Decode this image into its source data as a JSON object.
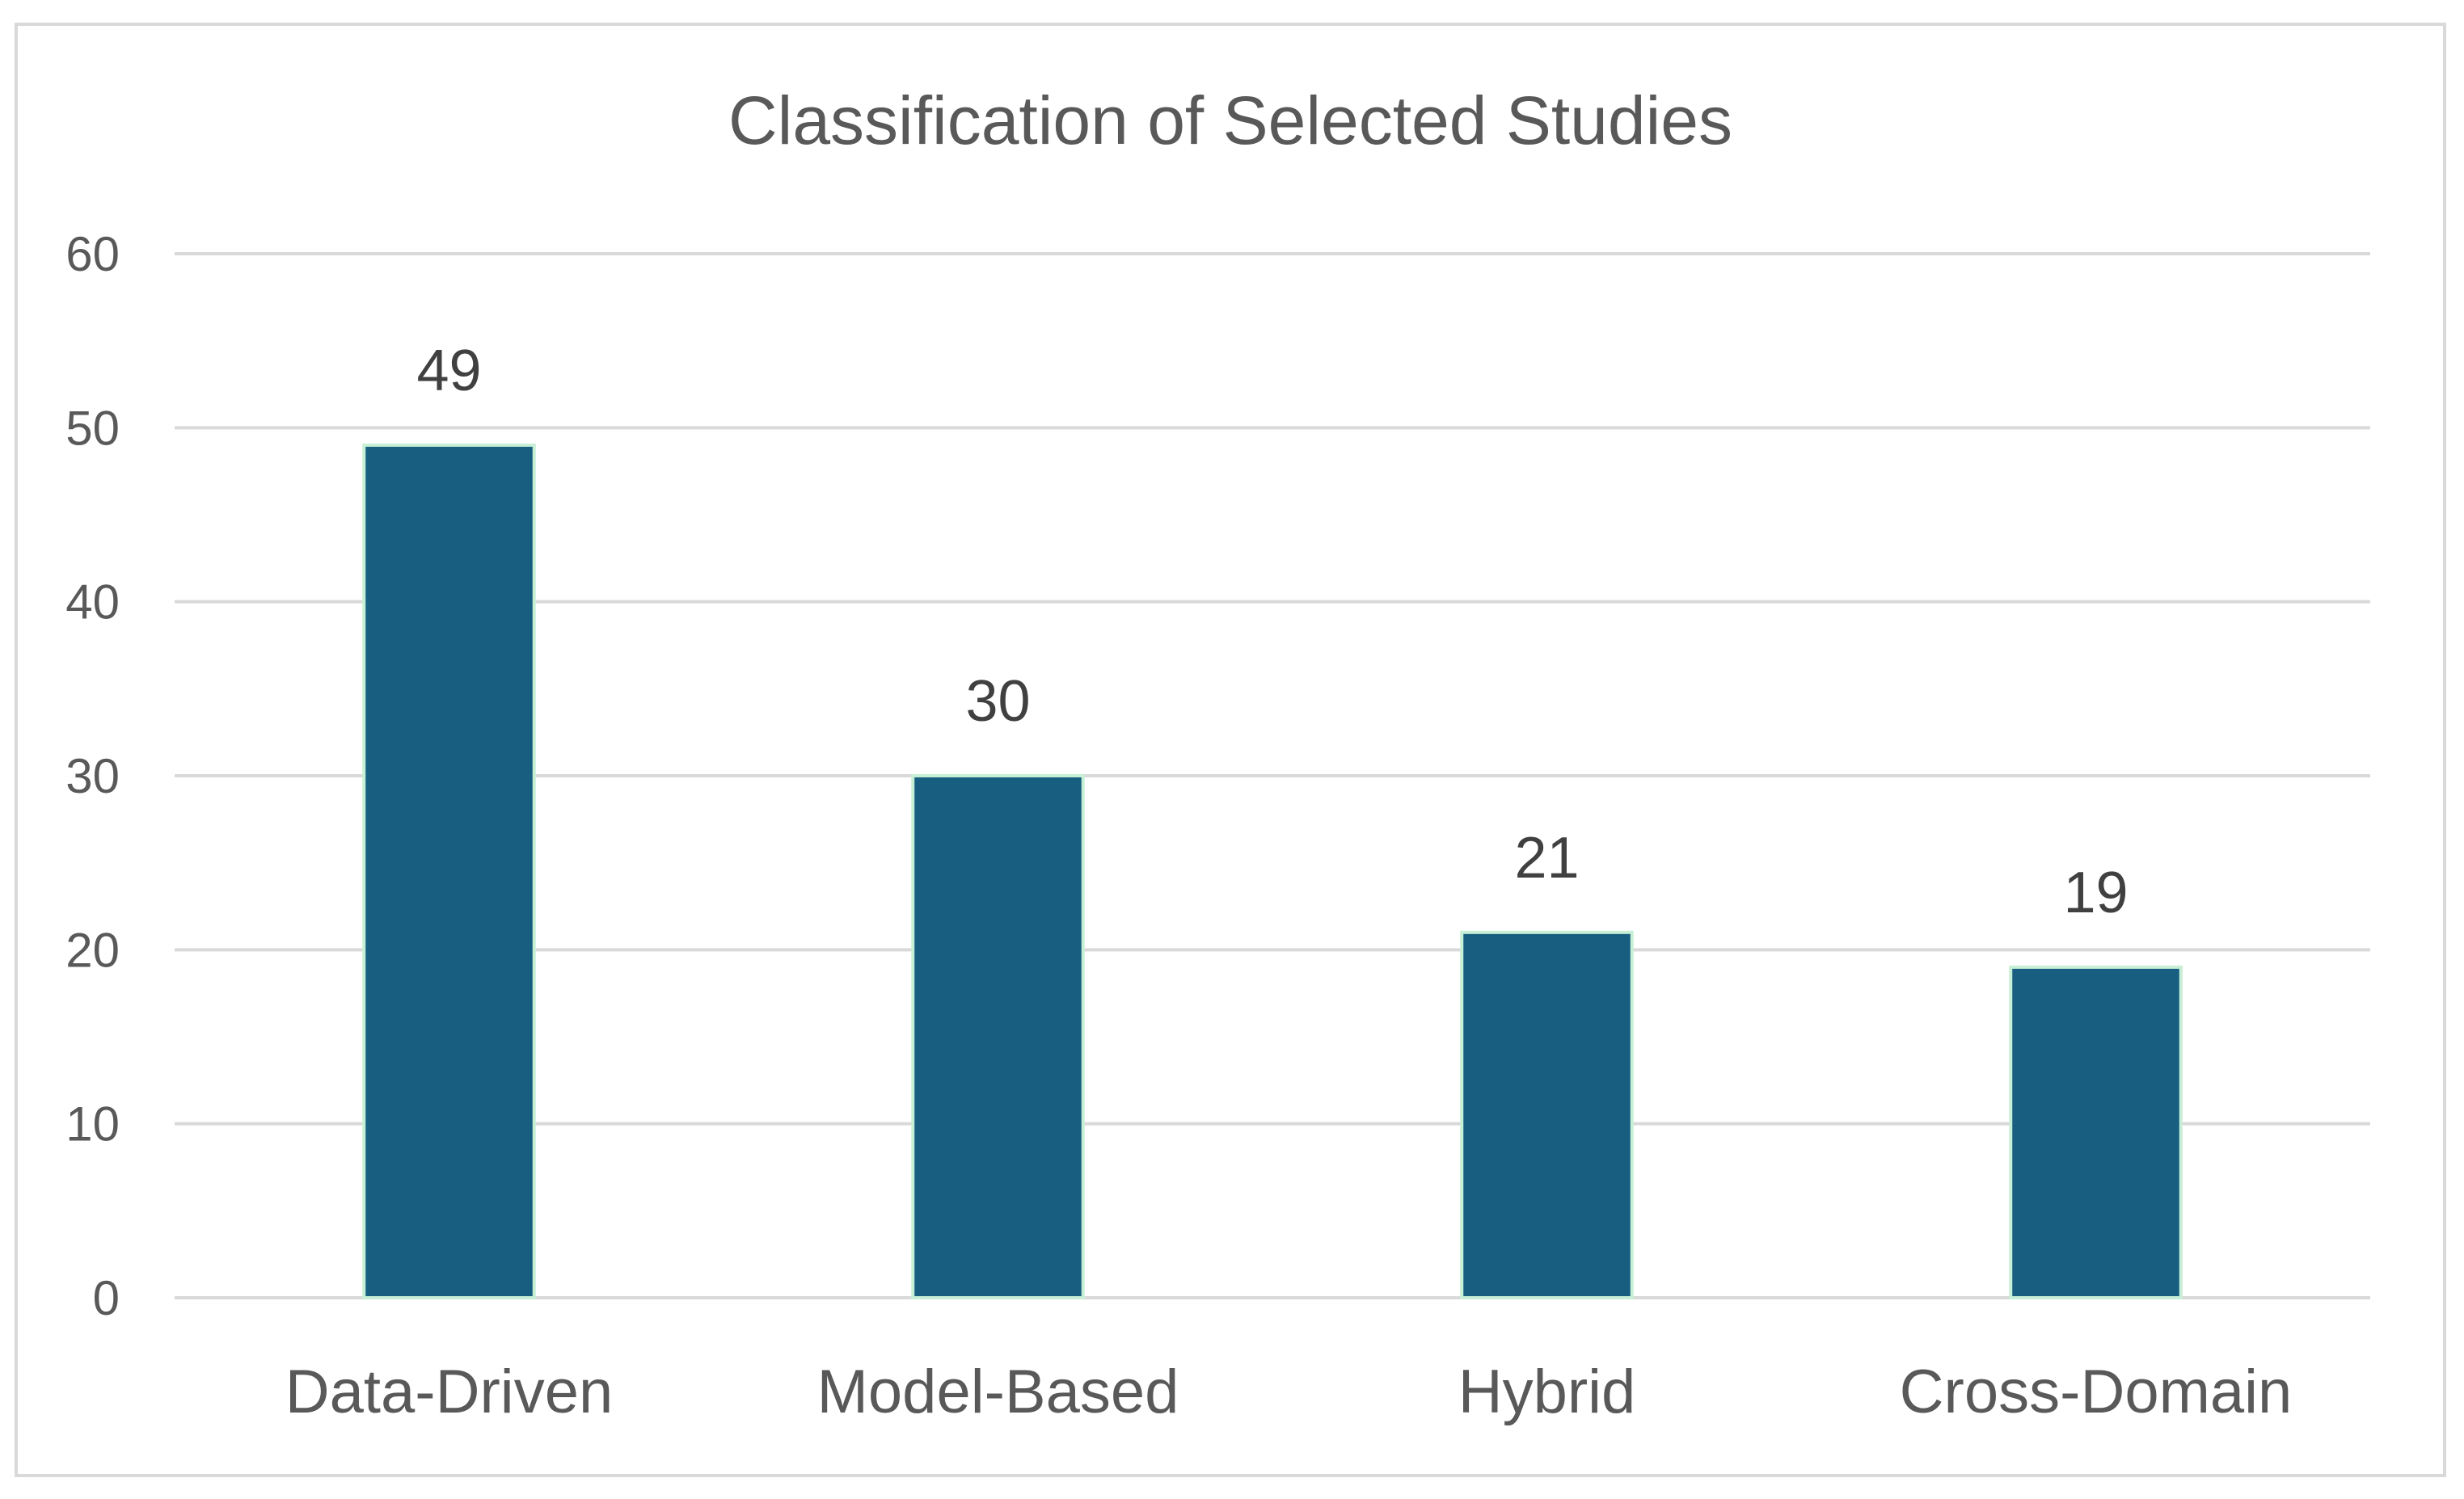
{
  "chart_data": {
    "type": "bar",
    "title": "Classification of Selected Studies",
    "xlabel": "",
    "ylabel": "",
    "categories": [
      "Data-Driven",
      "Model-Based",
      "Hybrid",
      "Cross-Domain"
    ],
    "values": [
      49,
      30,
      21,
      19
    ],
    "data_labels": [
      "49",
      "30",
      "21",
      "19"
    ],
    "ylim": [
      0,
      60
    ],
    "yticks": [
      0,
      10,
      20,
      30,
      40,
      50,
      60
    ],
    "ytick_labels": [
      "0",
      "10",
      "20",
      "30",
      "40",
      "50",
      "60"
    ],
    "grid": true,
    "legend": "none",
    "colors": {
      "bar_fill": "#175e80",
      "bar_outline": "#c7efd6",
      "gridline": "#d9d9d9",
      "text": "#595959",
      "data_label": "#404040"
    }
  }
}
